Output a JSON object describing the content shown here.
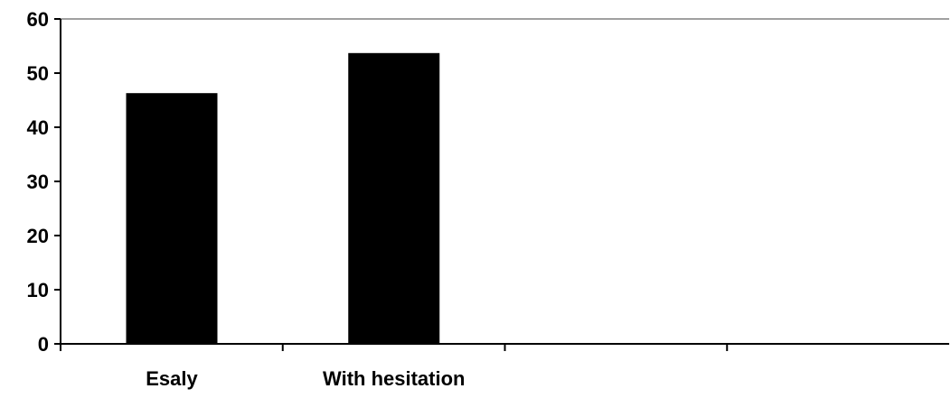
{
  "chart_data": {
    "type": "bar",
    "categories": [
      "Esaly",
      "With hesitation",
      "",
      ""
    ],
    "values": [
      46.3,
      53.7,
      null,
      null
    ],
    "title": "",
    "xlabel": "",
    "ylabel": "",
    "ylim": [
      0,
      60
    ],
    "yticks": [
      "0",
      "10",
      "20",
      "30",
      "40",
      "50",
      "60"
    ],
    "grid": false,
    "legend": "none",
    "colors": {
      "bar": "#000000",
      "axis": "#000000",
      "top_line": "#808080",
      "background": "#ffffff"
    }
  }
}
